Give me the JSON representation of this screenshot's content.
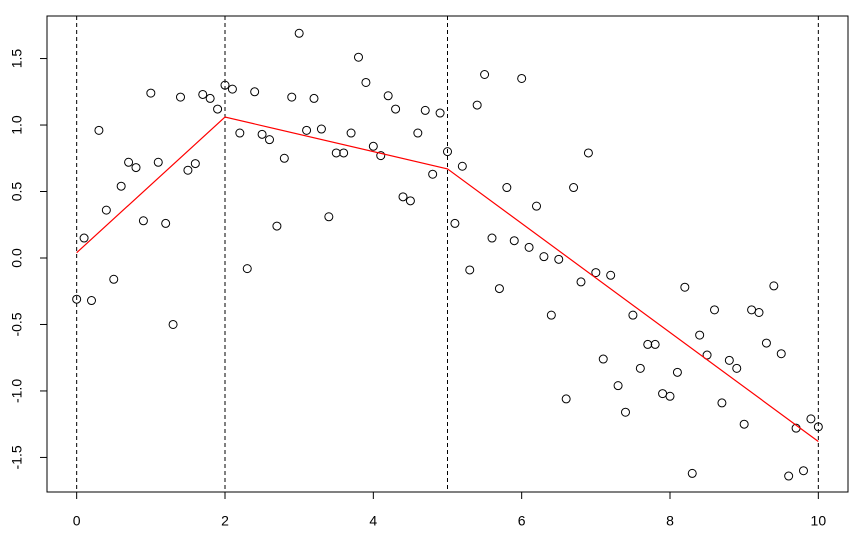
{
  "chart_data": {
    "type": "scatter",
    "x": [
      0,
      0.1,
      0.2,
      0.3,
      0.4,
      0.5,
      0.6,
      0.7,
      0.8,
      0.9,
      1,
      1.1,
      1.2,
      1.3,
      1.4,
      1.5,
      1.6,
      1.7,
      1.8,
      1.9,
      2,
      2.1,
      2.2,
      2.3,
      2.4,
      2.5,
      2.6,
      2.7,
      2.8,
      2.9,
      3,
      3.1,
      3.2,
      3.3,
      3.4,
      3.5,
      3.6,
      3.7,
      3.8,
      3.9,
      4,
      4.1,
      4.2,
      4.3,
      4.4,
      4.5,
      4.6,
      4.7,
      4.8,
      4.9,
      5,
      5.1,
      5.2,
      5.3,
      5.4,
      5.5,
      5.6,
      5.7,
      5.8,
      5.9,
      6,
      6.1,
      6.2,
      6.3,
      6.4,
      6.5,
      6.6,
      6.7,
      6.8,
      6.9,
      7,
      7.1,
      7.2,
      7.3,
      7.4,
      7.5,
      7.6,
      7.7,
      7.8,
      7.9,
      8,
      8.1,
      8.2,
      8.3,
      8.4,
      8.5,
      8.6,
      8.7,
      8.8,
      8.9,
      9,
      9.1,
      9.2,
      9.3,
      9.4,
      9.5,
      9.6,
      9.7,
      9.8,
      9.9,
      10
    ],
    "series": [
      {
        "color": "#000000",
        "values": [
          -0.31,
          0.15,
          -0.32,
          0.96,
          0.36,
          -0.16,
          0.54,
          0.72,
          0.68,
          0.28,
          1.24,
          0.72,
          0.26,
          -0.5,
          1.21,
          0.66,
          0.71,
          1.23,
          1.2,
          1.12,
          1.3,
          1.27,
          0.94,
          -0.08,
          1.25,
          0.93,
          0.89,
          0.24,
          0.75,
          1.21,
          1.69,
          0.96,
          1.2,
          0.97,
          0.31,
          0.79,
          0.79,
          0.94,
          1.51,
          1.32,
          0.84,
          0.77,
          1.22,
          1.12,
          0.46,
          0.43,
          0.94,
          1.11,
          0.63,
          1.09,
          0.8,
          0.26,
          0.69,
          -0.09,
          1.15,
          1.38,
          0.15,
          -0.23,
          0.53,
          0.13,
          1.35,
          0.08,
          0.39,
          0.01,
          -0.43,
          -0.01,
          -1.06,
          0.53,
          -0.18,
          0.79,
          -0.11,
          -0.76,
          -0.13,
          -0.96,
          -1.16,
          -0.43,
          -0.83,
          -0.65,
          -0.65,
          -1.02,
          -1.04,
          -0.86,
          -0.22,
          -1.62,
          -0.58,
          -0.73,
          -0.39,
          -1.09,
          -0.77,
          -0.83,
          -1.25,
          -0.39,
          -0.41,
          -0.64,
          -0.21,
          -0.72,
          -1.64,
          -1.28,
          -1.6,
          -1.21,
          -1.27
        ]
      }
    ],
    "fit": {
      "type": "line",
      "color": "#ff0000",
      "x": [
        0,
        2,
        5,
        10
      ],
      "values": [
        0.04,
        1.06,
        0.67,
        -1.38
      ]
    },
    "knots": [
      0,
      2,
      5,
      10
    ],
    "xlim": [
      -0.4,
      10.4
    ],
    "ylim": [
      -1.76,
      1.82
    ],
    "xticks": [
      0,
      2,
      4,
      6,
      8,
      10
    ],
    "yticks": [
      -1.5,
      {
        "value": -1,
        "label": "-1.0"
      },
      -0.5,
      {
        "value": 0,
        "label": "0.0"
      },
      0.5,
      {
        "value": 1,
        "label": "1.0"
      },
      1.5
    ]
  }
}
